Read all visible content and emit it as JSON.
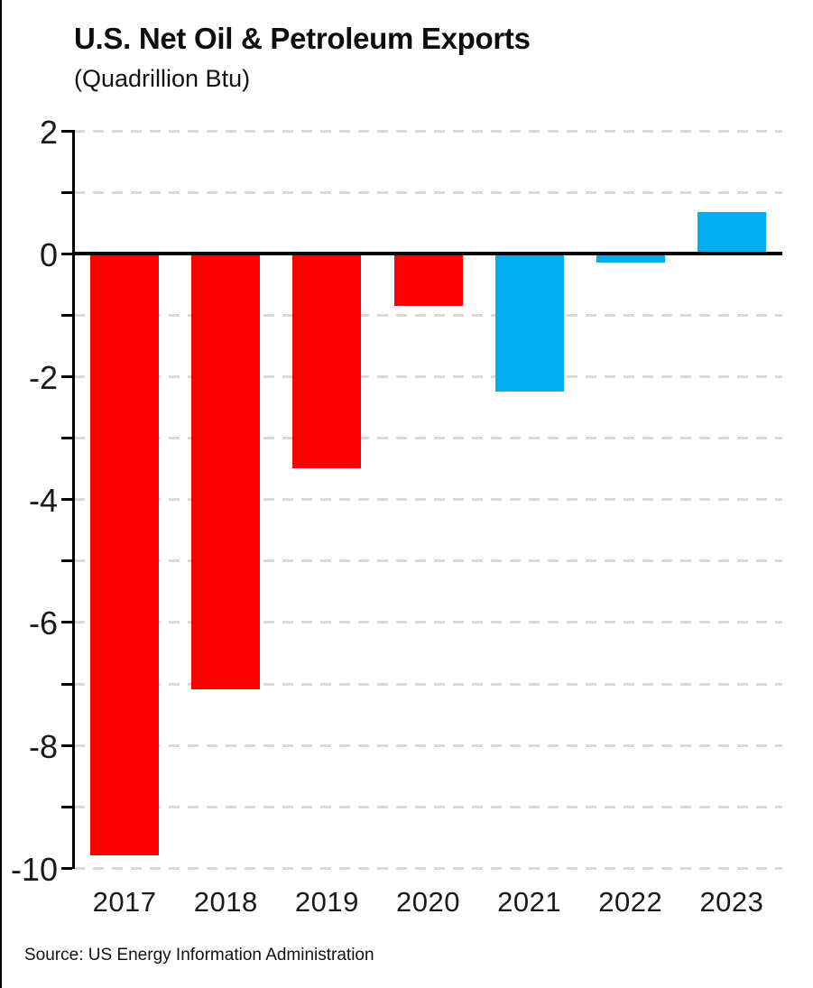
{
  "chart": {
    "title": "U.S. Net Oil & Petroleum Exports",
    "subtitle": "(Quadrillion Btu)",
    "source": "Source: US Energy Information Administration"
  },
  "chart_data": {
    "type": "bar",
    "title": "U.S. Net Oil & Petroleum Exports",
    "subtitle": "(Quadrillion Btu)",
    "source": "Source: US Energy Information Administration",
    "categories": [
      "2017",
      "2018",
      "2019",
      "2020",
      "2021",
      "2022",
      "2023"
    ],
    "values": [
      -9.8,
      -7.1,
      -3.5,
      -0.85,
      -2.25,
      -0.15,
      0.68
    ],
    "bar_colors": [
      "#FF0000",
      "#FF0000",
      "#FF0000",
      "#FF0000",
      "#00AEEF",
      "#00AEEF",
      "#00AEEF"
    ],
    "xlabel": "",
    "ylabel": "",
    "ylim": [
      -10,
      2
    ],
    "ytick_labels": [
      "2",
      "0",
      "-2",
      "-4",
      "-6",
      "-8",
      "-10"
    ],
    "ytick_labeled_values": [
      2,
      0,
      -2,
      -4,
      -6,
      -8,
      -10
    ],
    "ytick_minor_step": 1,
    "grid": "horizontal dashed, every 1 unit",
    "legend": "none",
    "colors": {
      "red_bars": "#FF0000",
      "blue_bars": "#00AEEF",
      "gridline": "#D9D9D9",
      "axis": "#000000",
      "text": "#111111",
      "background": "#FFFFFF"
    }
  }
}
